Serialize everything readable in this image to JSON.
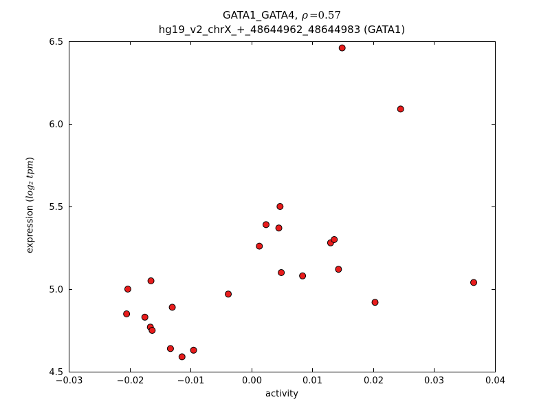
{
  "title": {
    "prefix": "GATA1_GATA4, ",
    "rho": "ρ",
    "eq": "=0.57",
    "line2": "hg19_v2_chrX_+_48644962_48644983 (GATA1)"
  },
  "axes": {
    "xlabel": "activity",
    "ylabel_prefix": "expression (",
    "ylabel_math": "log₂ tpm",
    "ylabel_suffix": ")"
  },
  "chart_data": {
    "type": "scatter",
    "title": "GATA1_GATA4, ρ=0.57",
    "subtitle": "hg19_v2_chrX_+_48644962_48644983 (GATA1)",
    "xlabel": "activity",
    "ylabel": "expression (log2 tpm)",
    "xlim": [
      -0.03,
      0.04
    ],
    "ylim": [
      4.5,
      6.5
    ],
    "xticks": [
      -0.03,
      -0.02,
      -0.01,
      0.0,
      0.01,
      0.02,
      0.03,
      0.04
    ],
    "xtick_labels": [
      "−0.03",
      "−0.02",
      "−0.01",
      "0.00",
      "0.01",
      "0.02",
      "0.03",
      "0.04"
    ],
    "yticks": [
      4.5,
      5.0,
      5.5,
      6.0,
      6.5
    ],
    "ytick_labels": [
      "4.5",
      "5.0",
      "5.5",
      "6.0",
      "6.5"
    ],
    "grid": false,
    "legend": null,
    "marker": {
      "shape": "circle",
      "fill": "#e81c1c",
      "edge": "#000000",
      "radius": 4.5
    },
    "points": [
      [
        -0.0205,
        4.85
      ],
      [
        -0.0203,
        5.0
      ],
      [
        -0.0175,
        4.83
      ],
      [
        -0.0165,
        5.05
      ],
      [
        -0.0166,
        4.77
      ],
      [
        -0.0163,
        4.75
      ],
      [
        -0.013,
        4.89
      ],
      [
        -0.0133,
        4.64
      ],
      [
        -0.0114,
        4.59
      ],
      [
        -0.0095,
        4.63
      ],
      [
        -0.0038,
        4.97
      ],
      [
        0.0013,
        5.26
      ],
      [
        0.0024,
        5.39
      ],
      [
        0.0045,
        5.37
      ],
      [
        0.0047,
        5.5
      ],
      [
        0.0049,
        5.1
      ],
      [
        0.0084,
        5.08
      ],
      [
        0.013,
        5.28
      ],
      [
        0.0136,
        5.3
      ],
      [
        0.0143,
        5.12
      ],
      [
        0.0149,
        6.46
      ],
      [
        0.0203,
        4.92
      ],
      [
        0.0245,
        6.09
      ],
      [
        0.0365,
        5.04
      ]
    ]
  }
}
